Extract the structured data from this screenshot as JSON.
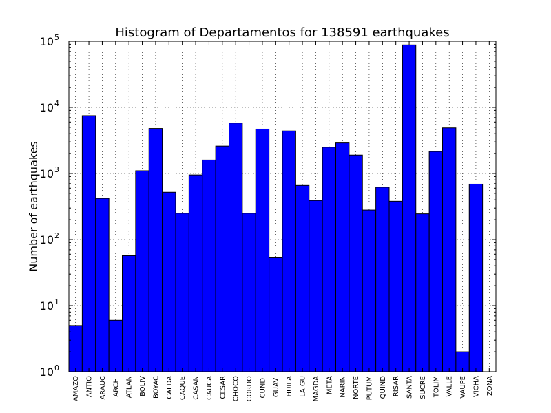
{
  "chart_data": {
    "type": "bar",
    "title": "Histogram of Departamentos for 138591 earthquakes",
    "xlabel": "",
    "ylabel": "Number of earthquakes",
    "yscale": "log",
    "ylim": [
      1,
      100000
    ],
    "ytick_labels": [
      {
        "base": "10",
        "exp": "0"
      },
      {
        "base": "10",
        "exp": "1"
      },
      {
        "base": "10",
        "exp": "2"
      },
      {
        "base": "10",
        "exp": "3"
      },
      {
        "base": "10",
        "exp": "4"
      },
      {
        "base": "10",
        "exp": "5"
      }
    ],
    "grid": true,
    "bar_color": "#0000ff",
    "categories": [
      "AMAZO",
      "ANTIO",
      "ARAUC",
      "ARCHI",
      "ATLAN",
      "BOLIV",
      "BOYAC",
      "CALDA",
      "CAQUE",
      "CASAN",
      "CAUCA",
      "CESAR",
      "CHOCO",
      "CORDO",
      "CUNDI",
      "GUAVI",
      "HUILA",
      "LA GU",
      "MAGDA",
      "META",
      "NARIN",
      "NORTE",
      "PUTUM",
      "QUIND",
      "RISAR",
      "SANTA",
      "SUCRE",
      "TOLIM",
      "VALLE",
      "VAUPE",
      "VICHA",
      "ZONA"
    ],
    "values": [
      5,
      7500,
      420,
      6,
      57,
      1100,
      4800,
      520,
      250,
      950,
      1600,
      2600,
      5800,
      250,
      4700,
      53,
      4400,
      660,
      390,
      2500,
      2900,
      1900,
      280,
      620,
      380,
      88000,
      245,
      2150,
      4900,
      2,
      690,
      1
    ]
  }
}
